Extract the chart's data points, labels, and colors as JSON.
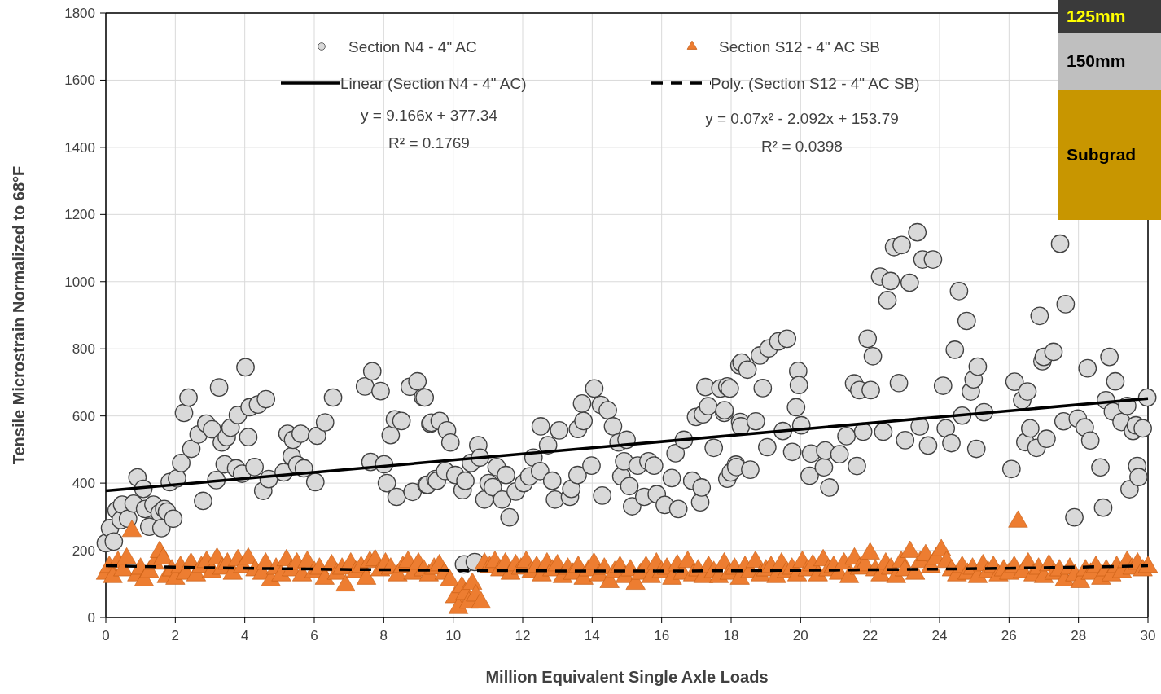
{
  "chart_data": {
    "type": "scatter",
    "xlabel": "Million Equivalent Single Axle Loads",
    "ylabel": "Tensile Microstrain Normalized to 68°F",
    "xlim": [
      0,
      30
    ],
    "xticks": [
      0,
      2,
      4,
      6,
      8,
      10,
      12,
      14,
      16,
      18,
      20,
      22,
      24,
      26,
      28,
      30
    ],
    "ylim": [
      0,
      1800
    ],
    "yticks": [
      0,
      200,
      400,
      600,
      800,
      1000,
      1200,
      1400,
      1600,
      1800
    ],
    "grid": true,
    "legend": "top",
    "annotations": [
      "y = 9.166x + 377.34",
      "R² = 0.1769",
      "y = 0.07x² - 2.092x + 153.79",
      "R² = 0.0398",
      "125mm",
      "150mm",
      "Subgrad"
    ],
    "series": [
      {
        "name": "Section N4 - 4\" AC",
        "marker": "circle",
        "color": "#d9d9d9",
        "x": [
          0,
          0.12,
          0.23,
          0.31,
          0.43,
          0.47,
          0.64,
          0.8,
          0.91,
          1.08,
          1.13,
          1.25,
          1.37,
          1.55,
          1.6,
          1.68,
          1.76,
          1.84,
          1.94,
          2.05,
          2.17,
          2.25,
          2.38,
          2.46,
          2.67,
          2.8,
          2.89,
          3.06,
          3.18,
          3.26,
          3.34,
          3.42,
          3.48,
          3.59,
          3.75,
          3.8,
          3.92,
          4.02,
          4.1,
          4.14,
          4.28,
          4.38,
          4.53,
          4.61,
          4.69,
          5.12,
          5.23,
          5.35,
          5.39,
          5.51,
          5.61,
          5.7,
          6.03,
          6.08,
          6.31,
          6.54,
          7.46,
          7.62,
          7.67,
          7.91,
          8.01,
          8.09,
          8.2,
          8.32,
          8.37,
          8.51,
          8.75,
          8.83,
          8.97,
          9.13,
          9.18,
          9.23,
          9.26,
          9.34,
          9.37,
          9.49,
          9.53,
          9.61,
          9.77,
          9.82,
          9.92,
          10.06,
          10.27,
          10.31,
          10.35,
          10.51,
          10.62,
          10.72,
          10.77,
          10.9,
          11.02,
          11.14,
          11.25,
          11.41,
          11.52,
          11.62,
          11.8,
          12.03,
          12.19,
          12.31,
          12.5,
          12.52,
          12.73,
          12.85,
          12.93,
          13.05,
          13.36,
          13.4,
          13.58,
          13.59,
          13.71,
          13.75,
          13.98,
          14.06,
          14.25,
          14.29,
          14.45,
          14.6,
          14.76,
          14.84,
          14.92,
          14.99,
          15.07,
          15.15,
          15.31,
          15.5,
          15.62,
          15.78,
          15.86,
          16.09,
          16.29,
          16.4,
          16.48,
          16.64,
          16.88,
          16.99,
          17.11,
          17.15,
          17.19,
          17.26,
          17.34,
          17.5,
          17.69,
          17.8,
          17.81,
          17.89,
          17.89,
          17.96,
          17.99,
          18.14,
          18.15,
          18.24,
          18.26,
          18.28,
          18.3,
          18.47,
          18.55,
          18.71,
          18.83,
          18.91,
          19.04,
          19.08,
          19.36,
          19.49,
          19.61,
          19.76,
          19.87,
          19.93,
          19.95,
          20.02,
          20.26,
          20.3,
          20.67,
          20.71,
          20.83,
          21.12,
          21.32,
          21.54,
          21.62,
          21.69,
          21.8,
          21.93,
          22.02,
          22.08,
          22.29,
          22.38,
          22.5,
          22.59,
          22.69,
          22.83,
          22.91,
          23.01,
          23.14,
          23.36,
          23.43,
          23.51,
          23.67,
          23.81,
          24.1,
          24.18,
          24.34,
          24.44,
          24.56,
          24.65,
          24.78,
          24.9,
          24.98,
          25.06,
          25.1,
          25.28,
          26.07,
          26.16,
          26.38,
          26.47,
          26.53,
          26.61,
          26.79,
          26.88,
          26.96,
          27.0,
          27.08,
          27.28,
          27.47,
          27.57,
          27.63,
          27.88,
          27.98,
          28.18,
          28.26,
          28.34,
          28.63,
          28.71,
          28.79,
          28.89,
          28.99,
          29.06,
          29.24,
          29.4,
          29.47,
          29.57,
          29.65,
          29.69,
          29.73,
          29.85,
          29.98
        ],
        "values": [
          221,
          266,
          226,
          319,
          290,
          336,
          294,
          339,
          417,
          383,
          323,
          270,
          336,
          311,
          266,
          323,
          315,
          403,
          294,
          414,
          460,
          609,
          655,
          502,
          545,
          347,
          577,
          560,
          409,
          685,
          521,
          456,
          537,
          565,
          444,
          603,
          428,
          745,
          537,
          626,
          448,
          634,
          377,
          650,
          412,
          432,
          547,
          480,
          529,
          454,
          547,
          444,
          403,
          541,
          581,
          655,
          688,
          463,
          733,
          674,
          456,
          400,
          543,
          590,
          359,
          585,
          687,
          374,
          703,
          656,
          655,
          395,
          395,
          577,
          580,
          412,
          407,
          585,
          436,
          557,
          521,
          424,
          379,
          158,
          407,
          460,
          165,
          513,
          476,
          351,
          400,
          388,
          448,
          351,
          424,
          298,
          375,
          400,
          420,
          476,
          436,
          569,
          513,
          407,
          351,
          557,
          359,
          383,
          424,
          561,
          637,
          585,
          452,
          682,
          633,
          363,
          617,
          569,
          521,
          420,
          465,
          529,
          391,
          331,
          452,
          359,
          465,
          452,
          367,
          335,
          415,
          489,
          323,
          529,
          407,
          597,
          343,
          387,
          605,
          686,
          629,
          505,
          682,
          609,
          617,
          688,
          413,
          682,
          432,
          455,
          448,
          751,
          582,
          569,
          759,
          738,
          440,
          584,
          780,
          683,
          507,
          801,
          822,
          555,
          830,
          493,
          626,
          734,
          692,
          572,
          422,
          488,
          447,
          497,
          387,
          486,
          540,
          697,
          451,
          677,
          553,
          830,
          677,
          778,
          1015,
          553,
          945,
          1002,
          1103,
          698,
          1109,
          528,
          997,
          1147,
          569,
          1066,
          512,
          1066,
          690,
          563,
          519,
          797,
          972,
          601,
          883,
          673,
          709,
          502,
          747,
          611,
          442,
          702,
          647,
          522,
          673,
          563,
          505,
          898,
          763,
          776,
          532,
          791,
          1113,
          584,
          933,
          298,
          592,
          566,
          742,
          527,
          447,
          327,
          647,
          776,
          613,
          703,
          582,
          630,
          382,
          555,
          572,
          451,
          418,
          563,
          655
        ]
      },
      {
        "name": "Section S12 - 4\" AC SB",
        "marker": "triangle",
        "color": "#ed7d31",
        "x": [
          0,
          0.1,
          0.2,
          0.35,
          0.5,
          0.6,
          0.75,
          0.9,
          1.0,
          1.1,
          1.25,
          1.4,
          1.55,
          1.65,
          1.75,
          1.9,
          2.0,
          2.15,
          2.3,
          2.45,
          2.6,
          2.75,
          2.9,
          3.05,
          3.2,
          3.35,
          3.5,
          3.65,
          3.8,
          3.95,
          4.1,
          4.3,
          4.5,
          4.6,
          4.75,
          4.9,
          5.05,
          5.2,
          5.35,
          5.5,
          5.65,
          5.8,
          6.0,
          6.15,
          6.3,
          6.5,
          6.65,
          6.8,
          6.9,
          7.05,
          7.2,
          7.35,
          7.5,
          7.6,
          7.75,
          7.9,
          8.05,
          8.2,
          8.4,
          8.55,
          8.7,
          8.85,
          9.0,
          9.15,
          9.3,
          9.45,
          9.6,
          9.75,
          9.9,
          10.05,
          10.15,
          10.25,
          10.35,
          10.45,
          10.55,
          10.65,
          10.8,
          10.9,
          11.05,
          11.2,
          11.35,
          11.5,
          11.65,
          11.8,
          11.95,
          12.1,
          12.25,
          12.4,
          12.55,
          12.7,
          12.85,
          13.0,
          13.15,
          13.3,
          13.45,
          13.6,
          13.75,
          13.9,
          14.05,
          14.2,
          14.35,
          14.5,
          14.65,
          14.8,
          14.95,
          15.1,
          15.25,
          15.4,
          15.55,
          15.7,
          15.85,
          16.0,
          16.15,
          16.3,
          16.45,
          16.6,
          16.75,
          16.9,
          17.05,
          17.2,
          17.35,
          17.5,
          17.65,
          17.8,
          17.95,
          18.1,
          18.25,
          18.4,
          18.55,
          18.7,
          18.85,
          19.0,
          19.15,
          19.3,
          19.45,
          19.6,
          19.75,
          19.9,
          20.05,
          20.2,
          20.35,
          20.5,
          20.65,
          20.8,
          20.95,
          21.1,
          21.25,
          21.4,
          21.55,
          21.7,
          21.85,
          22.0,
          22.15,
          22.3,
          22.45,
          22.6,
          22.75,
          22.9,
          23.0,
          23.15,
          23.3,
          23.45,
          23.6,
          23.75,
          23.9,
          24.05,
          24.2,
          24.35,
          24.5,
          24.65,
          24.8,
          24.95,
          25.1,
          25.25,
          25.4,
          25.55,
          25.7,
          25.85,
          26.0,
          26.15,
          26.26,
          26.4,
          26.55,
          26.7,
          26.85,
          27.0,
          27.15,
          27.3,
          27.45,
          27.6,
          27.75,
          27.9,
          28.05,
          28.2,
          28.35,
          28.5,
          28.65,
          28.8,
          28.95,
          29.1,
          29.25,
          29.4,
          29.55,
          29.7,
          29.85,
          30.0
        ],
        "values": [
          130,
          150,
          120,
          165,
          140,
          175,
          257,
          125,
          145,
          110,
          135,
          160,
          195,
          175,
          120,
          140,
          115,
          150,
          130,
          160,
          125,
          150,
          165,
          135,
          175,
          145,
          160,
          130,
          170,
          150,
          175,
          140,
          130,
          160,
          110,
          145,
          125,
          170,
          140,
          160,
          125,
          165,
          135,
          145,
          115,
          155,
          130,
          145,
          95,
          160,
          135,
          150,
          115,
          165,
          170,
          140,
          160,
          145,
          125,
          150,
          165,
          130,
          160,
          140,
          125,
          145,
          155,
          130,
          110,
          60,
          28,
          90,
          70,
          44,
          100,
          65,
          44,
          160,
          150,
          165,
          140,
          160,
          130,
          155,
          145,
          165,
          135,
          150,
          125,
          160,
          140,
          155,
          120,
          145,
          130,
          150,
          115,
          140,
          160,
          125,
          145,
          105,
          135,
          150,
          120,
          140,
          100,
          130,
          150,
          120,
          160,
          135,
          145,
          115,
          155,
          130,
          165,
          125,
          140,
          120,
          150,
          135,
          120,
          160,
          130,
          145,
          115,
          150,
          135,
          165,
          125,
          140,
          150,
          120,
          160,
          135,
          145,
          125,
          165,
          140,
          155,
          125,
          170,
          140,
          150,
          130,
          160,
          120,
          175,
          145,
          155,
          190,
          140,
          125,
          160,
          145,
          120,
          165,
          140,
          195,
          130,
          165,
          185,
          150,
          175,
          200,
          165,
          140,
          125,
          150,
          130,
          145,
          120,
          155,
          135,
          150,
          125,
          140,
          130,
          150,
          285,
          135,
          160,
          125,
          145,
          120,
          155,
          130,
          140,
          110,
          145,
          125,
          105,
          140,
          130,
          150,
          115,
          140,
          125,
          150,
          135,
          165,
          145,
          160,
          140,
          150
        ]
      },
      {
        "name": "Linear (Section N4 - 4\" AC)",
        "type": "line",
        "line_style": "solid",
        "color": "#000000",
        "x": [
          0,
          30
        ],
        "values": [
          377,
          652
        ]
      },
      {
        "name": "Poly. (Section S12 - 4\" AC SB)",
        "type": "line",
        "line_style": "dashed",
        "color": "#000000",
        "x": [
          0,
          3,
          6,
          9,
          12,
          15,
          18,
          21,
          24,
          27,
          30
        ],
        "values": [
          154,
          148,
          144,
          141,
          139,
          138,
          139,
          141,
          144,
          148,
          154
        ]
      }
    ]
  }
}
